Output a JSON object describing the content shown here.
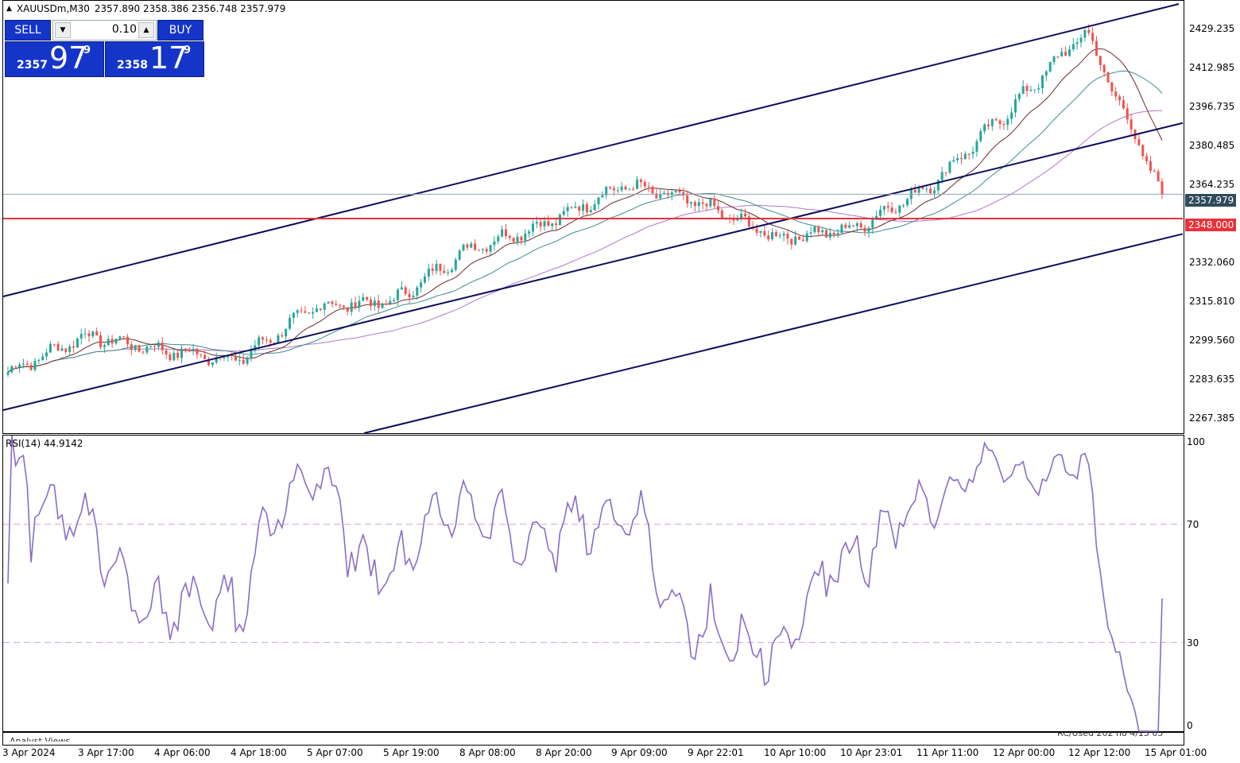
{
  "header": {
    "symbol_info": "XAUUSDm,M30",
    "ohlc": "2357.890 2358.386 2356.748 2357.979"
  },
  "trade_panel": {
    "sell_label": "SELL",
    "buy_label": "BUY",
    "lot": "0.10",
    "bid": {
      "prefix": "2357",
      "big": "97",
      "sup": "9"
    },
    "ask": {
      "prefix": "2358",
      "big": "17",
      "sup": "9"
    }
  },
  "price_axis": {
    "ticks": [
      "2429.235",
      "2412.985",
      "2396.735",
      "2380.485",
      "2364.235",
      "2332.060",
      "2315.810",
      "2299.560",
      "2283.635",
      "2267.385"
    ],
    "current_price": "2357.979",
    "level_price": "2348.000"
  },
  "rsi": {
    "title": "RSI(14) 44.9142",
    "levels": [
      "100",
      "70",
      "30",
      "0"
    ]
  },
  "time_axis": {
    "labels": [
      "3 Apr 2024",
      "3 Apr 17:00",
      "4 Apr 06:00",
      "4 Apr 18:00",
      "5 Apr 07:00",
      "5 Apr 19:00",
      "8 Apr 08:00",
      "8 Apr 20:00",
      "9 Apr 09:00",
      "9 Apr 22:01",
      "10 Apr 10:00",
      "10 Apr 23:01",
      "11 Apr 11:00",
      "12 Apr 00:00",
      "12 Apr 12:00",
      "15 Apr 01:00"
    ]
  },
  "footer": {
    "analyst_views": "Analyst Views",
    "right_note": "RC/Used 202 no 4/15 05"
  },
  "colors": {
    "bull": "#26a69a",
    "bear": "#ef5350",
    "channel": "#0d0d5c",
    "level": "#e8323a",
    "rsi": "#8a6cc8"
  },
  "chart_data": {
    "type": "candlestick",
    "symbol": "XAUUSDm",
    "timeframe": "M30",
    "ylim": [
      2260,
      2437
    ],
    "horizontal_level": 2348.0,
    "current_price": 2357.979,
    "rsi_period": 14,
    "rsi_last": 44.9142,
    "rsi_levels": [
      30,
      70
    ],
    "close_path": [
      {
        "t": "3 Apr 2024",
        "close": 2285
      },
      {
        "t": "3 Apr 17:00",
        "close": 2300
      },
      {
        "t": "4 Apr 06:00",
        "close": 2294
      },
      {
        "t": "4 Apr 18:00",
        "close": 2290
      },
      {
        "t": "5 Apr 07:00",
        "close": 2312
      },
      {
        "t": "5 Apr 19:00",
        "close": 2314
      },
      {
        "t": "8 Apr 08:00",
        "close": 2336
      },
      {
        "t": "8 Apr 20:00",
        "close": 2346
      },
      {
        "t": "9 Apr 09:00",
        "close": 2362
      },
      {
        "t": "9 Apr 22:01",
        "close": 2354
      },
      {
        "t": "10 Apr 10:00",
        "close": 2340
      },
      {
        "t": "10 Apr 23:01",
        "close": 2344
      },
      {
        "t": "11 Apr 11:00",
        "close": 2362
      },
      {
        "t": "12 Apr 00:00",
        "close": 2392
      },
      {
        "t": "12 Apr 12:00",
        "close": 2425
      },
      {
        "t": "15 Apr 01:00",
        "close": 2358
      }
    ]
  }
}
